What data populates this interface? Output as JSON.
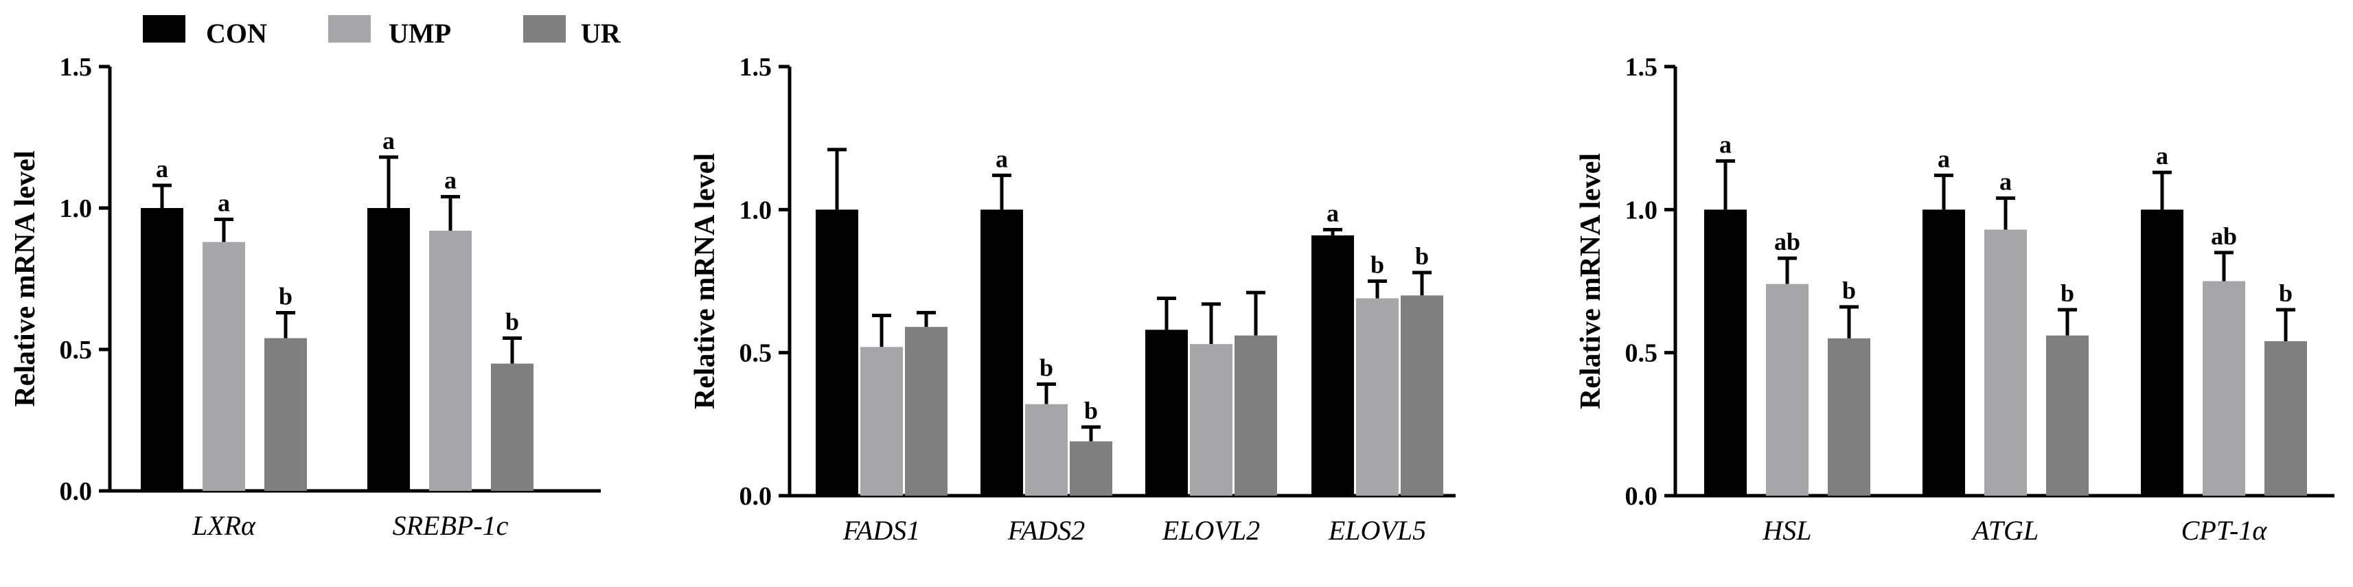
{
  "legend": [
    {
      "name": "CON",
      "color": "#000000"
    },
    {
      "name": "UMP",
      "color": "#a6a6a9"
    },
    {
      "name": "UR",
      "color": "#7f7f80"
    }
  ],
  "chart_data": [
    {
      "type": "bar",
      "ylabel": "Relative mRNA level",
      "ylim": [
        0,
        1.5
      ],
      "yticks": [
        "0.0",
        "0.5",
        "1.0",
        "1.5"
      ],
      "categories": [
        "LXRα",
        "SREBP-1c"
      ],
      "series": [
        {
          "name": "CON",
          "values": [
            1.0,
            1.0
          ],
          "errors": [
            0.08,
            0.18
          ],
          "letters": [
            "a",
            "a"
          ]
        },
        {
          "name": "UMP",
          "values": [
            0.88,
            0.92
          ],
          "errors": [
            0.08,
            0.12
          ],
          "letters": [
            "a",
            "a"
          ]
        },
        {
          "name": "UR",
          "values": [
            0.54,
            0.45
          ],
          "errors": [
            0.09,
            0.09
          ],
          "letters": [
            "b",
            "b"
          ]
        }
      ]
    },
    {
      "type": "bar",
      "ylabel": "Relative mRNA level",
      "ylim": [
        0,
        1.5
      ],
      "yticks": [
        "0.0",
        "0.5",
        "1.0",
        "1.5"
      ],
      "categories": [
        "FADS1",
        "FADS2",
        "ELOVL2",
        "ELOVL5"
      ],
      "series": [
        {
          "name": "CON",
          "values": [
            1.0,
            1.0,
            0.58,
            0.91
          ],
          "errors": [
            0.21,
            0.12,
            0.11,
            0.02
          ],
          "letters": [
            "",
            "a",
            "",
            "a"
          ]
        },
        {
          "name": "UMP",
          "values": [
            0.52,
            0.32,
            0.53,
            0.69
          ],
          "errors": [
            0.11,
            0.07,
            0.14,
            0.06
          ],
          "letters": [
            "",
            "b",
            "",
            "b"
          ]
        },
        {
          "name": "UR",
          "values": [
            0.59,
            0.19,
            0.56,
            0.7
          ],
          "errors": [
            0.05,
            0.05,
            0.15,
            0.08
          ],
          "letters": [
            "",
            "b",
            "",
            "b"
          ]
        }
      ]
    },
    {
      "type": "bar",
      "ylabel": "Relative mRNA level",
      "ylim": [
        0,
        1.5
      ],
      "yticks": [
        "0.0",
        "0.5",
        "1.0",
        "1.5"
      ],
      "categories": [
        "HSL",
        "ATGL",
        "CPT-1α"
      ],
      "series": [
        {
          "name": "CON",
          "values": [
            1.0,
            1.0,
            1.0
          ],
          "errors": [
            0.17,
            0.12,
            0.13
          ],
          "letters": [
            "a",
            "a",
            "a"
          ]
        },
        {
          "name": "UMP",
          "values": [
            0.74,
            0.93,
            0.75
          ],
          "errors": [
            0.09,
            0.11,
            0.1
          ],
          "letters": [
            "ab",
            "a",
            "ab"
          ]
        },
        {
          "name": "UR",
          "values": [
            0.55,
            0.56,
            0.54
          ],
          "errors": [
            0.11,
            0.09,
            0.11
          ],
          "letters": [
            "b",
            "b",
            "b"
          ]
        }
      ]
    }
  ]
}
